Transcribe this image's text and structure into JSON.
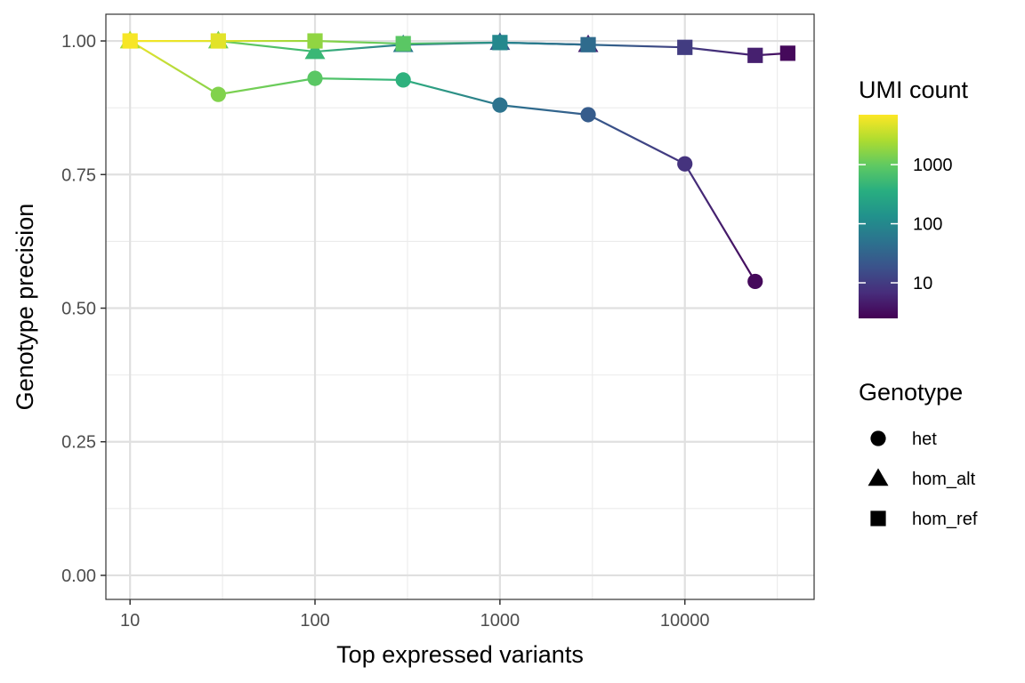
{
  "chart_data": {
    "type": "line",
    "xlabel": "Top expressed variants",
    "ylabel": "Genotype precision",
    "x_scale": "log10",
    "xlim": [
      7.4,
      50000
    ],
    "ylim": [
      -0.045,
      1.05
    ],
    "x_ticks": [
      10,
      100,
      1000,
      10000
    ],
    "x_tick_labels": [
      "10",
      "100",
      "1000",
      "10000"
    ],
    "y_ticks": [
      0,
      0.25,
      0.5,
      0.75,
      1
    ],
    "y_tick_labels": [
      "0.00",
      "0.25",
      "0.50",
      "0.75",
      "1.00"
    ],
    "grid": true,
    "color_legend": {
      "title": "UMI count",
      "scale": "log10",
      "palette": "viridis",
      "range": [
        2.5,
        7000
      ],
      "ticks": [
        10,
        100,
        1000
      ],
      "tick_labels": [
        "10",
        "100",
        "1000"
      ]
    },
    "shape_legend": {
      "title": "Genotype",
      "entries": [
        {
          "label": "het",
          "shape": "circle"
        },
        {
          "label": "hom_alt",
          "shape": "triangle"
        },
        {
          "label": "hom_ref",
          "shape": "square"
        }
      ]
    },
    "series": [
      {
        "name": "het",
        "shape": "circle",
        "x": [
          10,
          30,
          100,
          300,
          1000,
          3000,
          10000,
          24000
        ],
        "y": [
          1.0,
          0.9,
          0.93,
          0.927,
          0.88,
          0.862,
          0.77,
          0.55
        ],
        "umi_count": [
          6000,
          1500,
          900,
          400,
          50,
          25,
          8,
          3
        ]
      },
      {
        "name": "hom_alt",
        "shape": "triangle",
        "x": [
          10,
          30,
          100,
          300,
          1000,
          3000
        ],
        "y": [
          1.0,
          1.0,
          0.98,
          0.993,
          0.997,
          0.993
        ],
        "umi_count": [
          2500,
          1200,
          500,
          60,
          20,
          5
        ]
      },
      {
        "name": "hom_ref",
        "shape": "square",
        "x": [
          10,
          30,
          100,
          300,
          1000,
          3000,
          10000,
          24000,
          36000
        ],
        "y": [
          1.0,
          1.0,
          1.0,
          0.995,
          0.997,
          0.993,
          0.988,
          0.973,
          0.977
        ],
        "umi_count": [
          6500,
          5000,
          1800,
          900,
          100,
          40,
          10,
          5,
          3
        ]
      }
    ]
  }
}
